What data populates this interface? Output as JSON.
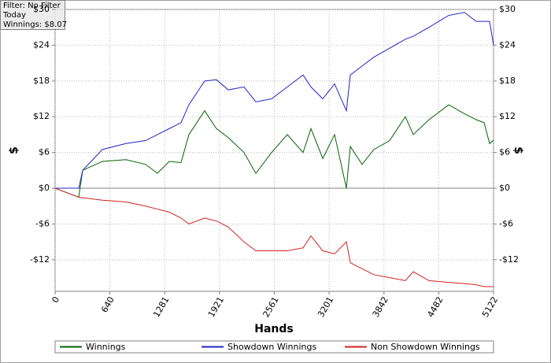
{
  "chart_data": {
    "type": "line",
    "filter_lines": [
      "Filter: No Filter",
      "Today",
      "Winnings: $8.07"
    ],
    "xlabel": "Hands",
    "ylabel": "$",
    "y2label": "$",
    "x": [
      0,
      276,
      322,
      552,
      828,
      1058,
      1195,
      1333,
      1471,
      1563,
      1747,
      1885,
      2023,
      2207,
      2345,
      2529,
      2713,
      2897,
      2989,
      3127,
      3265,
      3403,
      3449,
      3586,
      3724,
      3908,
      4092,
      4184,
      4368,
      4598,
      4782,
      4920,
      5012,
      5076,
      5122
    ],
    "series": [
      {
        "name": "Winnings",
        "color": "#006400",
        "values": [
          0,
          -1.5,
          3,
          4.5,
          4.8,
          4,
          2.5,
          4.5,
          4.3,
          9,
          13,
          10,
          8.5,
          6,
          2.5,
          6,
          9,
          6,
          10,
          5,
          9,
          0,
          7,
          4,
          6.5,
          8,
          12,
          9,
          11.5,
          14,
          12.5,
          11.5,
          11,
          7.5,
          8.07
        ]
      },
      {
        "name": "Showdown Winnings",
        "color": "#2323c8",
        "values": [
          0,
          0,
          3,
          6.5,
          7.5,
          8,
          9,
          10,
          11,
          14,
          18,
          18.2,
          16.5,
          17,
          14.5,
          15,
          17,
          19,
          17,
          15,
          17.5,
          13,
          19,
          20.5,
          22,
          23.5,
          25,
          25.5,
          27,
          29,
          29.5,
          28,
          28,
          28,
          24
        ]
      },
      {
        "name": "Non Showdown Winnings",
        "color": "#d02020",
        "values": [
          0,
          -1.5,
          -1.6,
          -2,
          -2.3,
          -3,
          -3.5,
          -4,
          -5,
          -6,
          -5,
          -5.5,
          -6.5,
          -9,
          -10.5,
          -10.5,
          -10.5,
          -10,
          -8,
          -10.5,
          -11,
          -9,
          -12.5,
          -13.5,
          -14.5,
          -15,
          -15.5,
          -14,
          -15.5,
          -15.8,
          -16,
          -16.2,
          -16.5,
          -16.5,
          -16.5
        ]
      }
    ],
    "xlim": [
      0,
      5122
    ],
    "xticks": [
      0,
      640,
      1281,
      1921,
      2561,
      3201,
      3842,
      4482,
      5122
    ],
    "ylim": [
      -17.3,
      30
    ],
    "yticks": [
      {
        "value": -12,
        "label": "-$12"
      },
      {
        "value": -6,
        "label": "-$6"
      },
      {
        "value": 0,
        "label": "$0"
      },
      {
        "value": 6,
        "label": "$6"
      },
      {
        "value": 12,
        "label": "$12"
      },
      {
        "value": 18,
        "label": "$18"
      },
      {
        "value": 24,
        "label": "$24"
      },
      {
        "value": 30,
        "label": "$30"
      }
    ],
    "y2lim": [
      -17.3,
      30
    ],
    "y2ticks": [
      {
        "value": -12,
        "label": "-$12"
      },
      {
        "value": -6,
        "label": "-$6"
      },
      {
        "value": 0,
        "label": "$0"
      },
      {
        "value": 6,
        "label": "$6"
      },
      {
        "value": 12,
        "label": "$12"
      },
      {
        "value": 18,
        "label": "$18"
      },
      {
        "value": 24,
        "label": "$24"
      },
      {
        "value": 30,
        "label": "$30"
      }
    ],
    "grid": true
  }
}
